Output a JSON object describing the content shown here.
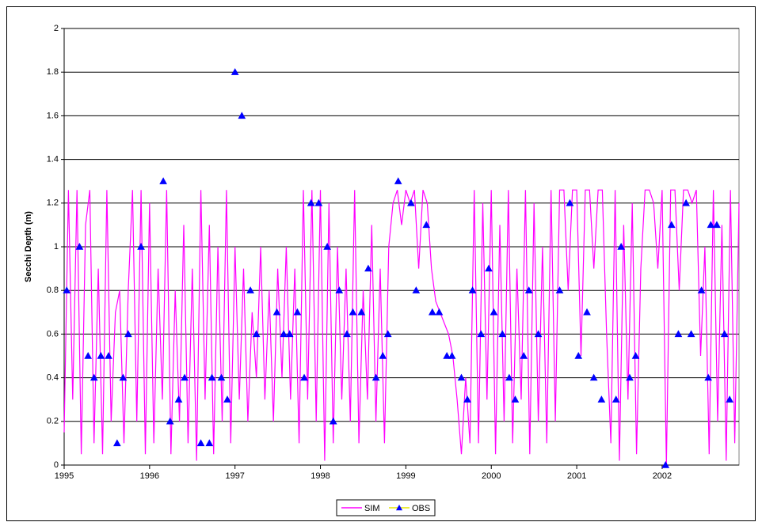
{
  "chart_data": {
    "type": "line",
    "y_label": "Secchi Depth (m)",
    "xlim": [
      1995,
      2002.9
    ],
    "xticks": [
      1995,
      1996,
      1997,
      1998,
      1999,
      2000,
      2001,
      2002
    ],
    "ylim": [
      0,
      2
    ],
    "yticks": [
      0,
      0.2,
      0.4,
      0.6,
      0.8,
      1,
      1.2,
      1.4,
      1.6,
      1.8,
      2
    ],
    "grid": true,
    "legend": "bottom",
    "series": [
      {
        "name": "SIM",
        "color": "#ff00ff",
        "mode": "lines",
        "x": [
          1995.0,
          1995.05,
          1995.1,
          1995.15,
          1995.2,
          1995.25,
          1995.3,
          1995.35,
          1995.4,
          1995.45,
          1995.5,
          1995.55,
          1995.6,
          1995.65,
          1995.7,
          1995.75,
          1995.8,
          1995.85,
          1995.9,
          1995.95,
          1996.0,
          1996.05,
          1996.1,
          1996.15,
          1996.2,
          1996.25,
          1996.3,
          1996.35,
          1996.4,
          1996.45,
          1996.5,
          1996.55,
          1996.6,
          1996.65,
          1996.7,
          1996.75,
          1996.8,
          1996.85,
          1996.9,
          1996.95,
          1997.0,
          1997.05,
          1997.1,
          1997.15,
          1997.2,
          1997.25,
          1997.3,
          1997.35,
          1997.4,
          1997.45,
          1997.5,
          1997.55,
          1997.6,
          1997.65,
          1997.7,
          1997.75,
          1997.8,
          1997.85,
          1997.9,
          1997.95,
          1998.0,
          1998.05,
          1998.1,
          1998.15,
          1998.2,
          1998.25,
          1998.3,
          1998.35,
          1998.4,
          1998.45,
          1998.5,
          1998.55,
          1998.6,
          1998.65,
          1998.7,
          1998.75,
          1998.8,
          1998.85,
          1998.9,
          1998.95,
          1999.0,
          1999.05,
          1999.1,
          1999.15,
          1999.2,
          1999.25,
          1999.3,
          1999.35,
          1999.4,
          1999.45,
          1999.5,
          1999.55,
          1999.6,
          1999.65,
          1999.7,
          1999.75,
          1999.8,
          1999.85,
          1999.9,
          1999.95,
          2000.0,
          2000.05,
          2000.1,
          2000.15,
          2000.2,
          2000.25,
          2000.3,
          2000.35,
          2000.4,
          2000.45,
          2000.5,
          2000.55,
          2000.6,
          2000.65,
          2000.7,
          2000.75,
          2000.8,
          2000.85,
          2000.9,
          2000.95,
          2001.0,
          2001.05,
          2001.1,
          2001.15,
          2001.2,
          2001.25,
          2001.3,
          2001.35,
          2001.4,
          2001.45,
          2001.5,
          2001.55,
          2001.6,
          2001.65,
          2001.7,
          2001.75,
          2001.8,
          2001.85,
          2001.9,
          2001.95,
          2002.0,
          2002.05,
          2002.1,
          2002.15,
          2002.2,
          2002.25,
          2002.3,
          2002.35,
          2002.4,
          2002.45,
          2002.5,
          2002.55,
          2002.6,
          2002.65,
          2002.7,
          2002.75,
          2002.8,
          2002.85,
          2002.9
        ],
        "values": [
          0.15,
          1.26,
          0.3,
          1.26,
          0.05,
          1.1,
          1.26,
          0.1,
          0.9,
          0.05,
          1.26,
          0.2,
          0.7,
          0.8,
          0.1,
          0.8,
          1.26,
          0.2,
          1.26,
          0.05,
          1.2,
          0.1,
          0.9,
          0.3,
          1.26,
          0.05,
          0.8,
          0.2,
          1.1,
          0.1,
          0.9,
          0.02,
          1.26,
          0.3,
          1.1,
          0.05,
          1.0,
          0.2,
          1.26,
          0.1,
          1.0,
          0.3,
          0.9,
          0.2,
          0.7,
          0.4,
          1.0,
          0.3,
          0.8,
          0.2,
          0.9,
          0.4,
          1.0,
          0.3,
          0.9,
          0.1,
          1.26,
          0.3,
          1.26,
          0.2,
          1.26,
          0.02,
          1.2,
          0.1,
          1.0,
          0.3,
          0.9,
          0.2,
          1.26,
          0.1,
          0.8,
          0.3,
          1.1,
          0.2,
          0.9,
          0.1,
          1.0,
          1.2,
          1.26,
          1.1,
          1.26,
          1.2,
          1.26,
          0.9,
          1.26,
          1.2,
          0.9,
          0.75,
          0.7,
          0.65,
          0.6,
          0.5,
          0.3,
          0.05,
          0.4,
          0.1,
          1.26,
          0.1,
          1.2,
          0.3,
          1.26,
          0.05,
          1.1,
          0.2,
          1.26,
          0.1,
          0.9,
          0.3,
          1.26,
          0.05,
          1.2,
          0.2,
          1.0,
          0.1,
          1.26,
          0.2,
          1.26,
          1.26,
          0.8,
          1.26,
          1.26,
          0.5,
          1.26,
          1.26,
          0.9,
          1.26,
          1.26,
          0.6,
          0.1,
          1.26,
          0.02,
          1.1,
          0.3,
          1.2,
          0.05,
          0.9,
          1.26,
          1.26,
          1.2,
          0.9,
          1.26,
          0.0,
          1.26,
          1.26,
          0.8,
          1.26,
          1.26,
          1.2,
          1.26,
          0.5,
          1.0,
          0.05,
          1.26,
          0.2,
          1.1,
          0.02,
          1.26,
          0.1,
          1.2
        ]
      },
      {
        "name": "OBS",
        "color": "#0000ff",
        "mode": "markers",
        "marker": "triangle",
        "x": [
          1995.03,
          1995.18,
          1995.28,
          1995.35,
          1995.43,
          1995.52,
          1995.62,
          1995.69,
          1995.75,
          1995.9,
          1996.16,
          1996.24,
          1996.34,
          1996.41,
          1996.6,
          1996.7,
          1996.73,
          1996.84,
          1996.91,
          1997.0,
          1997.08,
          1997.18,
          1997.25,
          1997.49,
          1997.57,
          1997.64,
          1997.73,
          1997.81,
          1997.89,
          1997.98,
          1998.08,
          1998.15,
          1998.22,
          1998.31,
          1998.38,
          1998.48,
          1998.56,
          1998.65,
          1998.73,
          1998.79,
          1998.91,
          1999.06,
          1999.12,
          1999.24,
          1999.31,
          1999.39,
          1999.48,
          1999.54,
          1999.65,
          1999.72,
          1999.78,
          1999.88,
          1999.97,
          2000.03,
          2000.13,
          2000.21,
          2000.28,
          2000.38,
          2000.44,
          2000.55,
          2000.8,
          2000.92,
          2001.02,
          2001.12,
          2001.2,
          2001.29,
          2001.46,
          2001.52,
          2001.62,
          2001.69,
          2002.04,
          2002.11,
          2002.19,
          2002.28,
          2002.34,
          2002.46,
          2002.54,
          2002.57,
          2002.64,
          2002.73,
          2002.79
        ],
        "values": [
          0.8,
          1.0,
          0.5,
          0.4,
          0.5,
          0.5,
          0.1,
          0.4,
          0.6,
          1.0,
          1.3,
          0.2,
          0.3,
          0.4,
          0.1,
          0.1,
          0.4,
          0.4,
          0.3,
          1.8,
          1.6,
          0.8,
          0.6,
          0.7,
          0.6,
          0.6,
          0.7,
          0.4,
          1.2,
          1.2,
          1.0,
          0.2,
          0.8,
          0.6,
          0.7,
          0.7,
          0.9,
          0.4,
          0.5,
          0.6,
          1.3,
          1.2,
          0.8,
          1.1,
          0.7,
          0.7,
          0.5,
          0.5,
          0.4,
          0.3,
          0.8,
          0.6,
          0.9,
          0.7,
          0.6,
          0.4,
          0.3,
          0.5,
          0.8,
          0.6,
          0.8,
          1.2,
          0.5,
          0.7,
          0.4,
          0.3,
          0.3,
          1.0,
          0.4,
          0.5,
          0.0,
          1.1,
          0.6,
          1.2,
          0.6,
          0.8,
          0.4,
          1.1,
          1.1,
          0.6,
          0.3
        ]
      }
    ]
  }
}
